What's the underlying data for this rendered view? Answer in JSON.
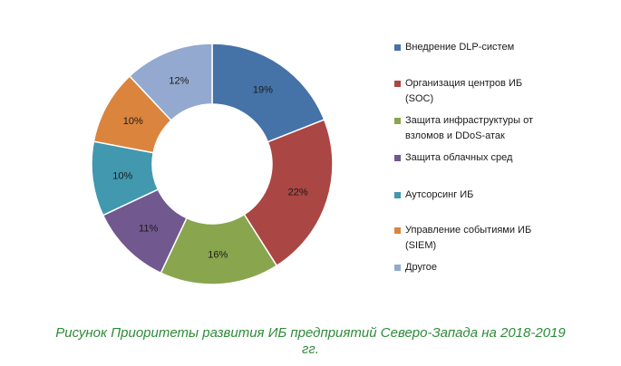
{
  "chart_data": {
    "type": "pie",
    "donut": true,
    "categories": [
      "Внедрение  DLP-систем",
      "Организация центров  ИБ (SOC)",
      "Защита инфраструктуры от взломов и DDoS-атак",
      "Защита облачных сред",
      "Аутсорсинг ИБ",
      "Управление событиями ИБ (SIEM)",
      "Другое"
    ],
    "values": [
      19,
      22,
      16,
      11,
      10,
      10,
      12
    ],
    "value_labels": [
      "19%",
      "22%",
      "16%",
      "11%",
      "10%",
      "10%",
      "12%"
    ],
    "colors": [
      "#4572a7",
      "#aa4643",
      "#89a54e",
      "#71588f",
      "#4198af",
      "#db843d",
      "#93a9cf"
    ],
    "legend_position": "right"
  },
  "legend": {
    "items": [
      "Внедрение  DLP-систем",
      "Организация центров  ИБ\n(SOC)",
      "Защита инфраструктуры от\nвзломов и DDoS-атак",
      "Защита облачных сред",
      "Аутсорсинг ИБ",
      "Управление событиями ИБ\n(SIEM)",
      "Другое"
    ]
  },
  "caption": {
    "line1": "Рисунок Приоритеты развития ИБ предприятий Северо-Запада на 2018-2019",
    "line2": "гг."
  }
}
